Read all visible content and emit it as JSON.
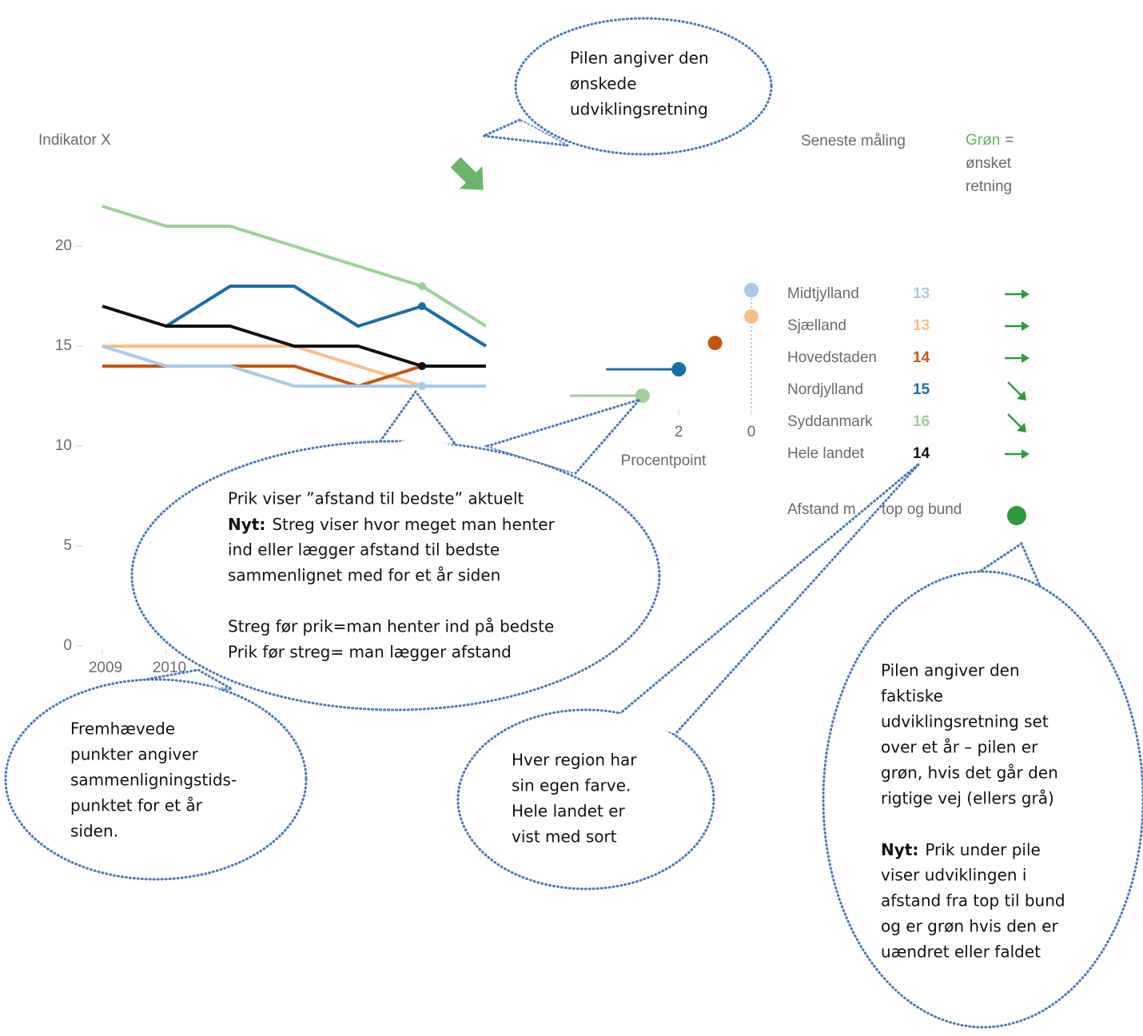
{
  "chart_data": [
    {
      "type": "line",
      "title": "Indikator X",
      "categories": [
        "2009",
        "2010",
        null,
        null,
        null,
        null,
        null
      ],
      "series": [
        {
          "name": "Syddanmark",
          "color": "#9fd09a",
          "values": [
            22,
            21,
            21,
            20,
            19,
            18,
            16
          ]
        },
        {
          "name": "Nordjylland",
          "color": "#1a6ea8",
          "values": [
            null,
            16,
            18,
            18,
            16,
            17,
            15
          ]
        },
        {
          "name": "Sjælland",
          "color": "#fbbd84",
          "values": [
            15,
            15,
            15,
            15,
            14,
            13,
            13
          ]
        },
        {
          "name": "Hovedstaden",
          "color": "#c8550f",
          "values": [
            14,
            14,
            14,
            14,
            13,
            14,
            14
          ]
        },
        {
          "name": "Midtjylland",
          "color": "#a9c9ec",
          "values": [
            15,
            14,
            14,
            13,
            13,
            13,
            13
          ]
        },
        {
          "name": "Hele landet",
          "color": "#111111",
          "values": [
            17,
            16,
            16,
            15,
            15,
            14,
            14
          ]
        }
      ],
      "ylim": [
        0,
        22
      ],
      "yticks": [
        0,
        5,
        10,
        15,
        20
      ]
    },
    {
      "type": "dot",
      "xlabel": "Procentpoint",
      "categories": [
        "Midtjylland",
        "Sjælland",
        "Hovedstaden",
        "Nordjylland",
        "Syddanmark"
      ],
      "values": [
        0,
        0,
        1,
        2,
        3
      ],
      "previous": [
        null,
        null,
        null,
        4,
        5
      ],
      "colors": [
        "#a9c9ec",
        "#fbbd84",
        "#c8550f",
        "#1a6ea8",
        "#9fd09a"
      ],
      "xlim": [
        5,
        0
      ],
      "xticks": [
        4,
        2,
        0
      ]
    }
  ],
  "table": {
    "header": "Seneste måling",
    "legend": {
      "label": "Grøn",
      "text": "=",
      "lines": [
        "ønsket",
        "retning"
      ],
      "color": "#5cb85c"
    },
    "rows": [
      [
        "Midtjylland",
        13
      ],
      [
        "Sjælland",
        13
      ],
      [
        "Hovedstaden",
        14
      ],
      [
        "Nordjylland",
        15
      ],
      [
        "Syddanmark",
        16
      ],
      [
        "Hele landet",
        14
      ]
    ],
    "colors": [
      "#a9c9ec",
      "#fbbd84",
      "#c8550f",
      "#1a6ea8",
      "#9fd09a",
      "#111111"
    ],
    "spread_label": [
      "Afstand m",
      "top og bund"
    ],
    "spread_color": "#2e9a3e"
  },
  "callouts": [
    {
      "paragraphs": [
        [
          "Pilen angiver den",
          "ønskede",
          "udviklingsretning"
        ]
      ]
    },
    {
      "paragraphs": [
        [
          "Prik viser ”afstand til bedste” aktuelt",
          {
            "bold": "Nyt:",
            "text": "Streg viser hvor meget man henter"
          },
          "ind eller lægger afstand til bedste",
          "sammenlignet med for et år siden"
        ],
        [
          "Streg før prik=man henter ind på bedste",
          "Prik før streg= man lægger afstand"
        ]
      ]
    },
    {
      "paragraphs": [
        [
          "Fremhævede",
          "punkter angiver",
          "sammenligningstids-",
          "punktet for et år",
          "siden."
        ]
      ]
    },
    {
      "paragraphs": [
        [
          "Hver region har",
          "sin egen farve.",
          "Hele landet er",
          "vist med sort"
        ]
      ]
    },
    {
      "paragraphs": [
        [
          "Pilen angiver den",
          "faktiske",
          "udviklingsretning set",
          "over et år – pilen er",
          "grøn, hvis det går den",
          "rigtige vej (ellers grå)"
        ],
        [
          {
            "bold": "Nyt:",
            "text": "Prik under pile"
          },
          "viser udviklingen i",
          "afstand fra top til bund",
          "og er grøn hvis den er",
          "uændret eller faldet"
        ]
      ]
    }
  ]
}
